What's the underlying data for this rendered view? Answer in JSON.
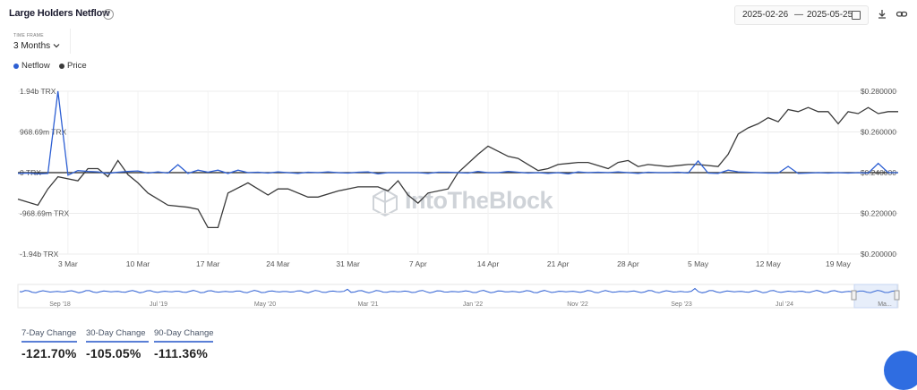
{
  "header": {
    "title": "Large Holders Netflow",
    "date_from": "2025-02-26",
    "date_sep": "—",
    "date_to": "2025-05-25"
  },
  "time_frame": {
    "label": "TIME FRAME",
    "value": "3 Months"
  },
  "legend": {
    "netflow": "Netflow",
    "price": "Price"
  },
  "colors": {
    "netflow": "#2d5fd3",
    "price": "#3a3a3a",
    "accent": "#2f6de1"
  },
  "watermark": "IntoTheBlock",
  "chart_data": {
    "type": "line",
    "title": "Large Holders Netflow",
    "x_ticks": [
      "3 Mar",
      "10 Mar",
      "17 Mar",
      "24 Mar",
      "31 Mar",
      "7 Apr",
      "14 Apr",
      "21 Apr",
      "28 Apr",
      "5 May",
      "12 May",
      "19 May"
    ],
    "y_left_ticks": [
      "1.94b TRX",
      "968.69m TRX",
      "0 TRX",
      "-968.69m TRX",
      "-1.94b TRX"
    ],
    "y_right_ticks": [
      "$0.280000",
      "$0.260000",
      "$0.240000",
      "$0.220000",
      "$0.200000"
    ],
    "y_left_range": [
      -1940000000,
      1940000000
    ],
    "y_right_range": [
      0.2,
      0.28
    ],
    "series": [
      {
        "name": "Netflow",
        "unit": "TRX",
        "x": [
          "2025-02-26",
          "2025-02-27",
          "2025-02-28",
          "2025-03-01",
          "2025-03-02",
          "2025-03-03",
          "2025-03-04",
          "2025-03-05",
          "2025-03-06",
          "2025-03-07",
          "2025-03-08",
          "2025-03-09",
          "2025-03-10",
          "2025-03-11",
          "2025-03-12",
          "2025-03-13",
          "2025-03-14",
          "2025-03-15",
          "2025-03-16",
          "2025-03-17",
          "2025-03-18",
          "2025-03-19",
          "2025-03-20",
          "2025-03-21",
          "2025-03-22",
          "2025-03-23",
          "2025-03-24",
          "2025-03-25",
          "2025-03-26",
          "2025-03-27",
          "2025-03-28",
          "2025-03-29",
          "2025-03-30",
          "2025-03-31",
          "2025-04-01",
          "2025-04-02",
          "2025-04-03",
          "2025-04-04",
          "2025-04-05",
          "2025-04-06",
          "2025-04-07",
          "2025-04-08",
          "2025-04-09",
          "2025-04-10",
          "2025-04-11",
          "2025-04-12",
          "2025-04-13",
          "2025-04-14",
          "2025-04-15",
          "2025-04-16",
          "2025-04-17",
          "2025-04-18",
          "2025-04-19",
          "2025-04-20",
          "2025-04-21",
          "2025-04-22",
          "2025-04-23",
          "2025-04-24",
          "2025-04-25",
          "2025-04-26",
          "2025-04-27",
          "2025-04-28",
          "2025-04-29",
          "2025-04-30",
          "2025-05-01",
          "2025-05-02",
          "2025-05-03",
          "2025-05-04",
          "2025-05-05",
          "2025-05-06",
          "2025-05-07",
          "2025-05-08",
          "2025-05-09",
          "2025-05-10",
          "2025-05-11",
          "2025-05-12",
          "2025-05-13",
          "2025-05-14",
          "2025-05-15",
          "2025-05-16",
          "2025-05-17",
          "2025-05-18",
          "2025-05-19",
          "2025-05-20",
          "2025-05-21",
          "2025-05-22",
          "2025-05-23",
          "2025-05-24",
          "2025-05-25"
        ],
        "values": [
          -20000000,
          -10000000,
          -30000000,
          -20000000,
          1940000000,
          -60000000,
          50000000,
          30000000,
          20000000,
          -20000000,
          10000000,
          30000000,
          40000000,
          -10000000,
          20000000,
          -10000000,
          190000000,
          -20000000,
          60000000,
          10000000,
          60000000,
          -20000000,
          60000000,
          0,
          10000000,
          -10000000,
          20000000,
          0,
          -20000000,
          10000000,
          0,
          20000000,
          0,
          -10000000,
          10000000,
          20000000,
          -30000000,
          0,
          0,
          0,
          0,
          -20000000,
          10000000,
          10000000,
          0,
          -10000000,
          30000000,
          0,
          0,
          30000000,
          10000000,
          -10000000,
          0,
          -20000000,
          0,
          -30000000,
          20000000,
          0,
          10000000,
          0,
          20000000,
          0,
          -20000000,
          10000000,
          0,
          0,
          10000000,
          -10000000,
          280000000,
          -10000000,
          -20000000,
          60000000,
          20000000,
          10000000,
          0,
          -10000000,
          -10000000,
          150000000,
          -20000000,
          -10000000,
          0,
          -10000000,
          0,
          -10000000,
          0,
          -10000000,
          220000000,
          0,
          0
        ]
      },
      {
        "name": "Price",
        "unit": "USD",
        "x": [
          "2025-02-26",
          "2025-02-28",
          "2025-03-01",
          "2025-03-02",
          "2025-03-04",
          "2025-03-05",
          "2025-03-06",
          "2025-03-07",
          "2025-03-08",
          "2025-03-09",
          "2025-03-10",
          "2025-03-11",
          "2025-03-13",
          "2025-03-15",
          "2025-03-16",
          "2025-03-17",
          "2025-03-18",
          "2025-03-19",
          "2025-03-21",
          "2025-03-23",
          "2025-03-24",
          "2025-03-25",
          "2025-03-27",
          "2025-03-28",
          "2025-03-30",
          "2025-04-01",
          "2025-04-03",
          "2025-04-04",
          "2025-04-05",
          "2025-04-06",
          "2025-04-07",
          "2025-04-08",
          "2025-04-10",
          "2025-04-11",
          "2025-04-13",
          "2025-04-14",
          "2025-04-16",
          "2025-04-17",
          "2025-04-18",
          "2025-04-19",
          "2025-04-20",
          "2025-04-21",
          "2025-04-23",
          "2025-04-24",
          "2025-04-26",
          "2025-04-27",
          "2025-04-28",
          "2025-04-29",
          "2025-04-30",
          "2025-05-02",
          "2025-05-04",
          "2025-05-05",
          "2025-05-07",
          "2025-05-08",
          "2025-05-09",
          "2025-05-10",
          "2025-05-11",
          "2025-05-12",
          "2025-05-13",
          "2025-05-14",
          "2025-05-15",
          "2025-05-16",
          "2025-05-17",
          "2025-05-18",
          "2025-05-19",
          "2025-05-20",
          "2025-05-21",
          "2025-05-22",
          "2025-05-23",
          "2025-05-24",
          "2025-05-25"
        ],
        "values": [
          0.227,
          0.224,
          0.232,
          0.238,
          0.236,
          0.242,
          0.242,
          0.238,
          0.246,
          0.239,
          0.235,
          0.23,
          0.224,
          0.223,
          0.222,
          0.213,
          0.213,
          0.23,
          0.235,
          0.229,
          0.232,
          0.232,
          0.228,
          0.228,
          0.231,
          0.233,
          0.233,
          0.231,
          0.236,
          0.229,
          0.225,
          0.23,
          0.232,
          0.24,
          0.249,
          0.253,
          0.248,
          0.247,
          0.244,
          0.241,
          0.242,
          0.244,
          0.245,
          0.245,
          0.242,
          0.245,
          0.246,
          0.243,
          0.244,
          0.243,
          0.244,
          0.244,
          0.243,
          0.249,
          0.259,
          0.262,
          0.264,
          0.267,
          0.265,
          0.271,
          0.27,
          0.272,
          0.27,
          0.27,
          0.264,
          0.27,
          0.269,
          0.272,
          0.269,
          0.27,
          0.27
        ]
      }
    ],
    "navigator": {
      "x_ticks": [
        "Sep '18",
        "Jul '19",
        "May '20",
        "Mar '21",
        "Jan '22",
        "Nov '22",
        "Sep '23",
        "Jul '24",
        "Ma..."
      ]
    }
  },
  "changes": [
    {
      "label": "7-Day Change",
      "value": "-121.70%"
    },
    {
      "label": "30-Day Change",
      "value": "-105.05%"
    },
    {
      "label": "90-Day Change",
      "value": "-111.36%"
    }
  ]
}
